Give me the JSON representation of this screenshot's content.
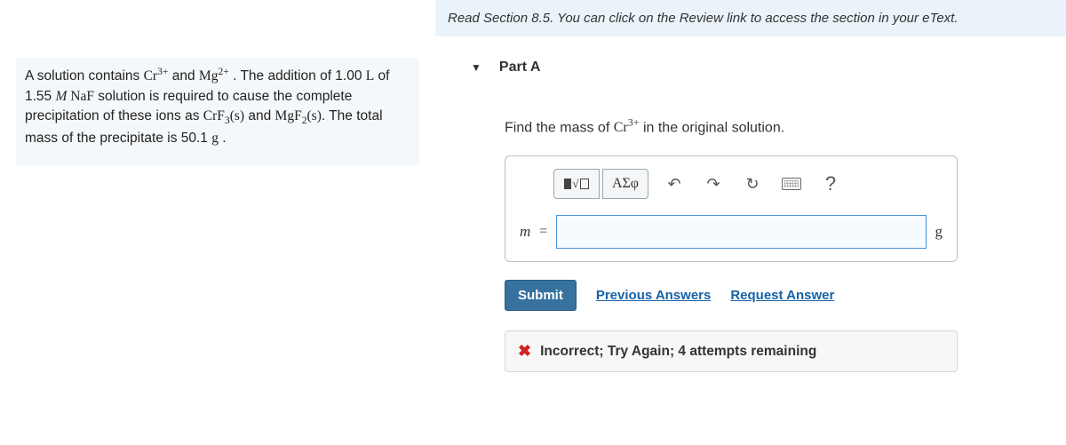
{
  "problem": {
    "text_html": "A solution contains <span class='serif'>Cr<sup>3+</sup></span> and <span class='serif'>Mg<sup>2+</sup></span> . The addition of 1.00 <span class='serif'>L</span> of 1.55 <span class='serif'><i>M</i> NaF</span> solution is required to cause the complete precipitation of these ions as <span class='serif'>CrF<sub>3</sub>(s)</span> and <span class='serif'>MgF<sub>2</sub>(s)</span>. The total mass of the precipitate is 50.1 <span class='serif'>g</span> ."
  },
  "review_text": "Read Section 8.5. You can click on the Review link to access the section in your eText.",
  "part": {
    "label": "Part A",
    "prompt_html": "Find the mass of <span class='serif'>Cr<sup>3+</sup></span> in the original solution."
  },
  "toolbar": {
    "templates_label": "■√□",
    "greek_label": "ΑΣφ",
    "undo": "↶",
    "redo": "↷",
    "reset": "↻",
    "help": "?"
  },
  "input": {
    "var": "m",
    "eq": "=",
    "value": "",
    "unit": "g"
  },
  "actions": {
    "submit": "Submit",
    "previous": "Previous Answers",
    "request": "Request Answer"
  },
  "feedback": {
    "icon": "✖",
    "text": "Incorrect; Try Again; 4 attempts remaining"
  },
  "colors": {
    "problem_bg": "#f5f8fa",
    "review_bg": "#eaf3f9",
    "submit_bg": "#37729e",
    "link": "#1662a6",
    "error": "#d42020",
    "input_border": "#4a90d9"
  }
}
